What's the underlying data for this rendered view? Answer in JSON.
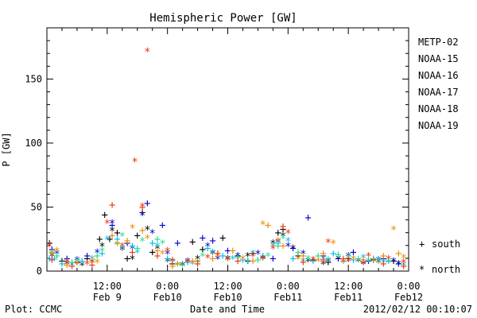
{
  "chart_data": {
    "type": "scatter",
    "title": "Hemispheric Power [GW]",
    "ylabel": "P [GW]",
    "xlabel": "Date and Time",
    "ylim": [
      0,
      190
    ],
    "yticks": [
      0,
      50,
      100,
      150
    ],
    "x_range_hours": [
      0,
      72
    ],
    "xticks": [
      {
        "hour": 12,
        "time": "12:00",
        "date": "Feb 9"
      },
      {
        "hour": 24,
        "time": "0:00",
        "date": "Feb10"
      },
      {
        "hour": 36,
        "time": "12:00",
        "date": "Feb10"
      },
      {
        "hour": 48,
        "time": "0:00",
        "date": "Feb11"
      },
      {
        "hour": 60,
        "time": "12:00",
        "date": "Feb11"
      },
      {
        "hour": 72,
        "time": "0:00",
        "date": "Feb12"
      }
    ],
    "legend_placement": "right",
    "symbol_key": {
      "south_label": "south",
      "north_label": "north",
      "south_symbol": "+",
      "north_symbol": "*"
    },
    "series": [
      {
        "name": "METP-02",
        "color": "#000000",
        "south": [
          [
            0.5,
            22
          ],
          [
            3,
            8
          ],
          [
            6,
            7
          ],
          [
            8,
            10
          ],
          [
            10.5,
            25
          ],
          [
            11.5,
            44
          ],
          [
            12.5,
            25
          ],
          [
            14,
            30
          ],
          [
            16,
            10
          ],
          [
            18,
            28
          ],
          [
            19,
            46
          ],
          [
            21,
            15
          ],
          [
            25,
            6
          ],
          [
            29,
            23
          ],
          [
            31,
            17
          ],
          [
            35,
            26
          ],
          [
            38,
            12
          ],
          [
            41,
            14
          ],
          [
            46,
            30
          ],
          [
            47,
            33
          ],
          [
            50,
            12
          ],
          [
            53,
            9
          ],
          [
            56,
            7
          ],
          [
            60,
            10
          ],
          [
            65,
            9
          ],
          [
            69,
            8
          ]
        ],
        "north": [
          [
            1,
            12
          ],
          [
            4,
            6
          ],
          [
            7,
            5
          ],
          [
            9,
            7
          ],
          [
            11,
            20
          ],
          [
            13,
            32
          ],
          [
            15,
            17
          ],
          [
            17,
            10
          ],
          [
            20,
            33
          ],
          [
            22,
            18
          ],
          [
            24,
            8
          ],
          [
            27,
            5
          ],
          [
            30,
            10
          ],
          [
            33,
            14
          ],
          [
            36,
            10
          ],
          [
            40,
            12
          ],
          [
            43,
            10
          ],
          [
            45,
            22
          ],
          [
            47,
            28
          ],
          [
            49,
            18
          ],
          [
            52,
            8
          ],
          [
            55,
            6
          ],
          [
            58,
            10
          ],
          [
            62,
            8
          ],
          [
            66,
            7
          ],
          [
            70,
            6
          ]
        ]
      },
      {
        "name": "NOAA-15",
        "color": "#0000cc",
        "south": [
          [
            1,
            17
          ],
          [
            4,
            10
          ],
          [
            8,
            12
          ],
          [
            13,
            36
          ],
          [
            16,
            22
          ],
          [
            20,
            53
          ],
          [
            23,
            36
          ],
          [
            26,
            22
          ],
          [
            31,
            26
          ],
          [
            33,
            24
          ],
          [
            36,
            16
          ],
          [
            40,
            8
          ],
          [
            45,
            10
          ],
          [
            49,
            18
          ],
          [
            52,
            42
          ],
          [
            55,
            12
          ],
          [
            58,
            10
          ],
          [
            61,
            15
          ],
          [
            64,
            8
          ],
          [
            67,
            10
          ],
          [
            70,
            6
          ]
        ],
        "north": [
          [
            2,
            14
          ],
          [
            6,
            9
          ],
          [
            10,
            15
          ],
          [
            13,
            38
          ],
          [
            17,
            18
          ],
          [
            19,
            44
          ],
          [
            21,
            30
          ],
          [
            24,
            14
          ],
          [
            28,
            8
          ],
          [
            32,
            20
          ],
          [
            34,
            10
          ],
          [
            38,
            12
          ],
          [
            42,
            14
          ],
          [
            46,
            23
          ],
          [
            48,
            20
          ],
          [
            51,
            14
          ],
          [
            56,
            8
          ],
          [
            60,
            12
          ],
          [
            63,
            6
          ],
          [
            66,
            9
          ],
          [
            69,
            8
          ]
        ]
      },
      {
        "name": "NOAA-16",
        "color": "#00bbee",
        "south": [
          [
            0.5,
            10
          ],
          [
            3,
            6
          ],
          [
            7,
            8
          ],
          [
            11,
            14
          ],
          [
            14,
            25
          ],
          [
            17,
            20
          ],
          [
            21,
            22
          ],
          [
            24,
            10
          ],
          [
            28,
            7
          ],
          [
            32,
            18
          ],
          [
            35,
            12
          ],
          [
            39,
            9
          ],
          [
            43,
            12
          ],
          [
            46,
            22
          ],
          [
            49,
            10
          ],
          [
            53,
            8
          ],
          [
            57,
            14
          ],
          [
            61,
            9
          ],
          [
            65,
            10
          ],
          [
            68,
            8
          ]
        ],
        "north": [
          [
            1.5,
            9
          ],
          [
            5,
            5
          ],
          [
            9,
            10
          ],
          [
            12,
            25
          ],
          [
            15,
            18
          ],
          [
            18,
            15
          ],
          [
            22,
            20
          ],
          [
            25,
            8
          ],
          [
            29,
            6
          ],
          [
            33,
            15
          ],
          [
            37,
            10
          ],
          [
            41,
            14
          ],
          [
            45,
            20
          ],
          [
            48,
            24
          ],
          [
            51,
            8
          ],
          [
            55,
            10
          ],
          [
            59,
            7
          ],
          [
            63,
            11
          ],
          [
            67,
            7
          ],
          [
            71,
            5
          ]
        ]
      },
      {
        "name": "NOAA-17",
        "color": "#22dd88",
        "south": [
          [
            2,
            12
          ],
          [
            5,
            7
          ],
          [
            10,
            12
          ],
          [
            14,
            22
          ],
          [
            18,
            18
          ],
          [
            22,
            25
          ],
          [
            26,
            6
          ],
          [
            30,
            8
          ],
          [
            34,
            14
          ],
          [
            38,
            11
          ],
          [
            42,
            9
          ],
          [
            46,
            20
          ],
          [
            50,
            15
          ],
          [
            54,
            12
          ],
          [
            58,
            13
          ],
          [
            62,
            10
          ],
          [
            66,
            9
          ]
        ],
        "north": [
          [
            1,
            14
          ],
          [
            6,
            8
          ],
          [
            11,
            16
          ],
          [
            15,
            28
          ],
          [
            19,
            24
          ],
          [
            23,
            22
          ],
          [
            27,
            4
          ],
          [
            31,
            12
          ],
          [
            36,
            9
          ],
          [
            40,
            7
          ],
          [
            44,
            12
          ],
          [
            47,
            26
          ],
          [
            52,
            10
          ],
          [
            56,
            9
          ],
          [
            60,
            11
          ],
          [
            64,
            8
          ],
          [
            68,
            7
          ]
        ]
      },
      {
        "name": "NOAA-18",
        "color": "#ee8800",
        "south": [
          [
            1,
            15
          ],
          [
            4,
            5
          ],
          [
            9,
            9
          ],
          [
            13,
            28
          ],
          [
            16,
            24
          ],
          [
            19,
            32
          ],
          [
            22,
            16
          ],
          [
            25,
            4
          ],
          [
            29,
            8
          ],
          [
            33,
            10
          ],
          [
            37,
            16
          ],
          [
            41,
            8
          ],
          [
            44,
            36
          ],
          [
            47,
            20
          ],
          [
            51,
            12
          ],
          [
            55,
            14
          ],
          [
            59,
            8
          ],
          [
            63,
            9
          ],
          [
            67,
            12
          ],
          [
            70,
            14
          ]
        ],
        "north": [
          [
            2,
            16
          ],
          [
            6,
            6
          ],
          [
            10,
            7
          ],
          [
            14,
            21
          ],
          [
            17,
            34
          ],
          [
            20,
            26
          ],
          [
            23,
            14
          ],
          [
            26,
            5
          ],
          [
            30,
            7
          ],
          [
            34,
            12
          ],
          [
            39,
            10
          ],
          [
            43,
            37
          ],
          [
            46,
            24
          ],
          [
            50,
            10
          ],
          [
            54,
            8
          ],
          [
            57,
            22
          ],
          [
            61,
            10
          ],
          [
            65,
            8
          ],
          [
            69,
            33
          ],
          [
            71,
            11
          ]
        ]
      },
      {
        "name": "NOAA-19",
        "color": "#ee3311",
        "south": [
          [
            1,
            9
          ],
          [
            5,
            4
          ],
          [
            9,
            5
          ],
          [
            13,
            52
          ],
          [
            17,
            15
          ],
          [
            19,
            50
          ],
          [
            22,
            12
          ],
          [
            25,
            9
          ],
          [
            30,
            6
          ],
          [
            34,
            14
          ],
          [
            38,
            8
          ],
          [
            43,
            11
          ],
          [
            47,
            35
          ],
          [
            51,
            7
          ],
          [
            55,
            9
          ],
          [
            59,
            10
          ],
          [
            63,
            7
          ],
          [
            67,
            6
          ],
          [
            71,
            4
          ]
        ],
        "north": [
          [
            0.5,
            20
          ],
          [
            4,
            7
          ],
          [
            8,
            6
          ],
          [
            12,
            38
          ],
          [
            15,
            20
          ],
          [
            17.5,
            86
          ],
          [
            19,
            51
          ],
          [
            20,
            172
          ],
          [
            24,
            16
          ],
          [
            28,
            7
          ],
          [
            32,
            11
          ],
          [
            36,
            9
          ],
          [
            41,
            12
          ],
          [
            45,
            18
          ],
          [
            48,
            30
          ],
          [
            53,
            9
          ],
          [
            56,
            23
          ],
          [
            60,
            8
          ],
          [
            64,
            12
          ],
          [
            68,
            10
          ],
          [
            71,
            7
          ]
        ]
      }
    ]
  },
  "footer": {
    "left": "Plot: CCMC",
    "right": "2012/02/12 00:10:07"
  }
}
